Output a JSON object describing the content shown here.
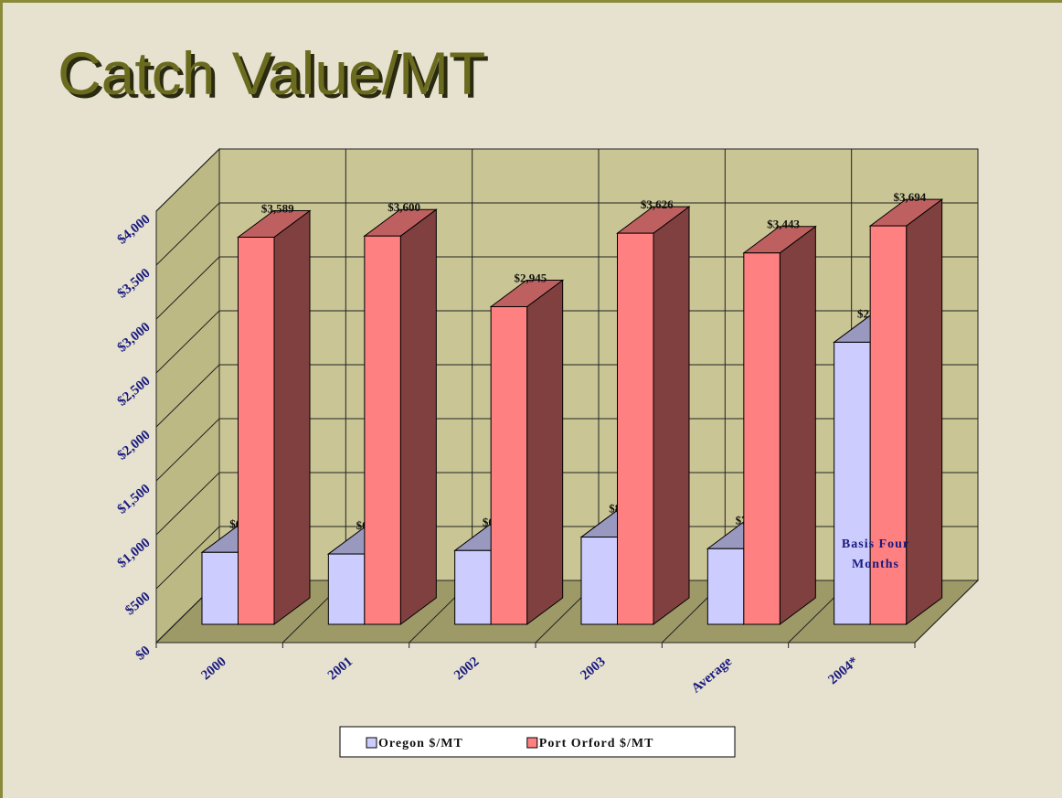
{
  "chart_data": {
    "type": "bar3d",
    "title": "Catch Value/MT",
    "categories": [
      "2000",
      "2001",
      "2002",
      "2003",
      "Average",
      "2004*"
    ],
    "series": [
      {
        "name": "Oregon $/MT",
        "color": "#ccccff",
        "values": [
          667,
          652,
          684,
          809,
          701,
          2615
        ],
        "value_labels": [
          "$667",
          "$652",
          "$684",
          "$809",
          "$701",
          "$2,615"
        ]
      },
      {
        "name": "Port Orford $/MT",
        "color": "#ff8080",
        "values": [
          3589,
          3600,
          2945,
          3626,
          3443,
          3694
        ],
        "value_labels": [
          "$3,589",
          "$3,600",
          "$2,945",
          "$3,626",
          "$3,443",
          "$3,694"
        ]
      }
    ],
    "ylim": [
      0,
      4000
    ],
    "yticks": [
      {
        "value": 0,
        "label": "$0"
      },
      {
        "value": 500,
        "label": "$500"
      },
      {
        "value": 1000,
        "label": "$1,000"
      },
      {
        "value": 1500,
        "label": "$1,500"
      },
      {
        "value": 2000,
        "label": "$2,000"
      },
      {
        "value": 2500,
        "label": "$2,500"
      },
      {
        "value": 3000,
        "label": "$3,000"
      },
      {
        "value": 3500,
        "label": "$3,500"
      },
      {
        "value": 4000,
        "label": "$4,000"
      }
    ],
    "grid": true,
    "annotation": "Basis Four Months",
    "legend": "bottom"
  }
}
